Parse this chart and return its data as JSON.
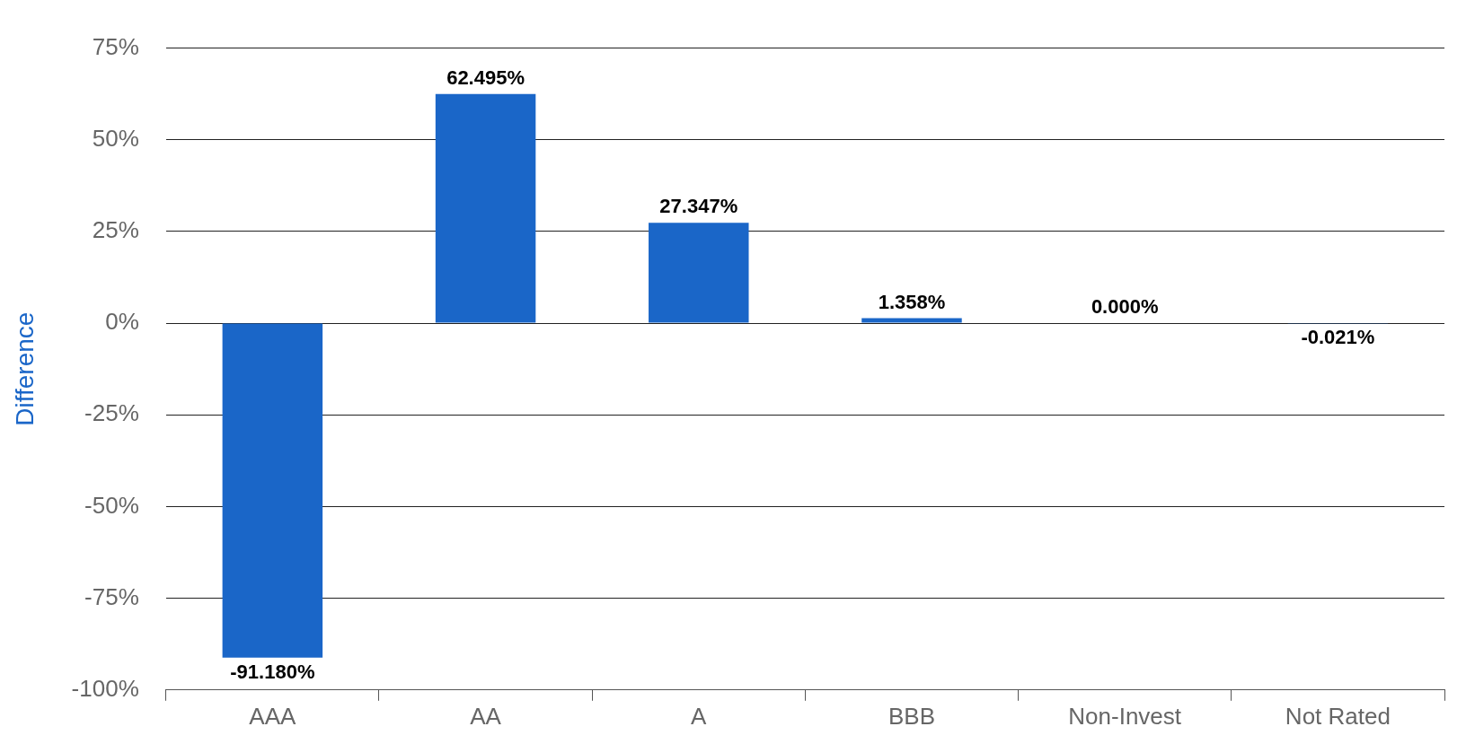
{
  "chart_data": {
    "type": "bar",
    "ylabel": "Difference",
    "categories": [
      "AAA",
      "AA",
      "A",
      "BBB",
      "Non-Invest",
      "Not Rated"
    ],
    "values": [
      -91.18,
      62.495,
      27.347,
      1.358,
      0,
      -0.021
    ],
    "value_labels": [
      "-91.180%",
      "62.495%",
      "27.347%",
      "1.358%",
      "0.000%",
      "-0.021%"
    ],
    "color": "#1a66c8",
    "ylim": [
      -100,
      75
    ],
    "yticks": [
      {
        "value": -100,
        "label": "-100%"
      },
      {
        "value": -75,
        "label": "-75%"
      },
      {
        "value": -50,
        "label": "-50%"
      },
      {
        "value": -25,
        "label": "-25%"
      },
      {
        "value": 0,
        "label": "0%"
      },
      {
        "value": 25,
        "label": "25%"
      },
      {
        "value": 50,
        "label": "50%"
      },
      {
        "value": 75,
        "label": "75%"
      }
    ],
    "grid": "y",
    "legend": false
  }
}
